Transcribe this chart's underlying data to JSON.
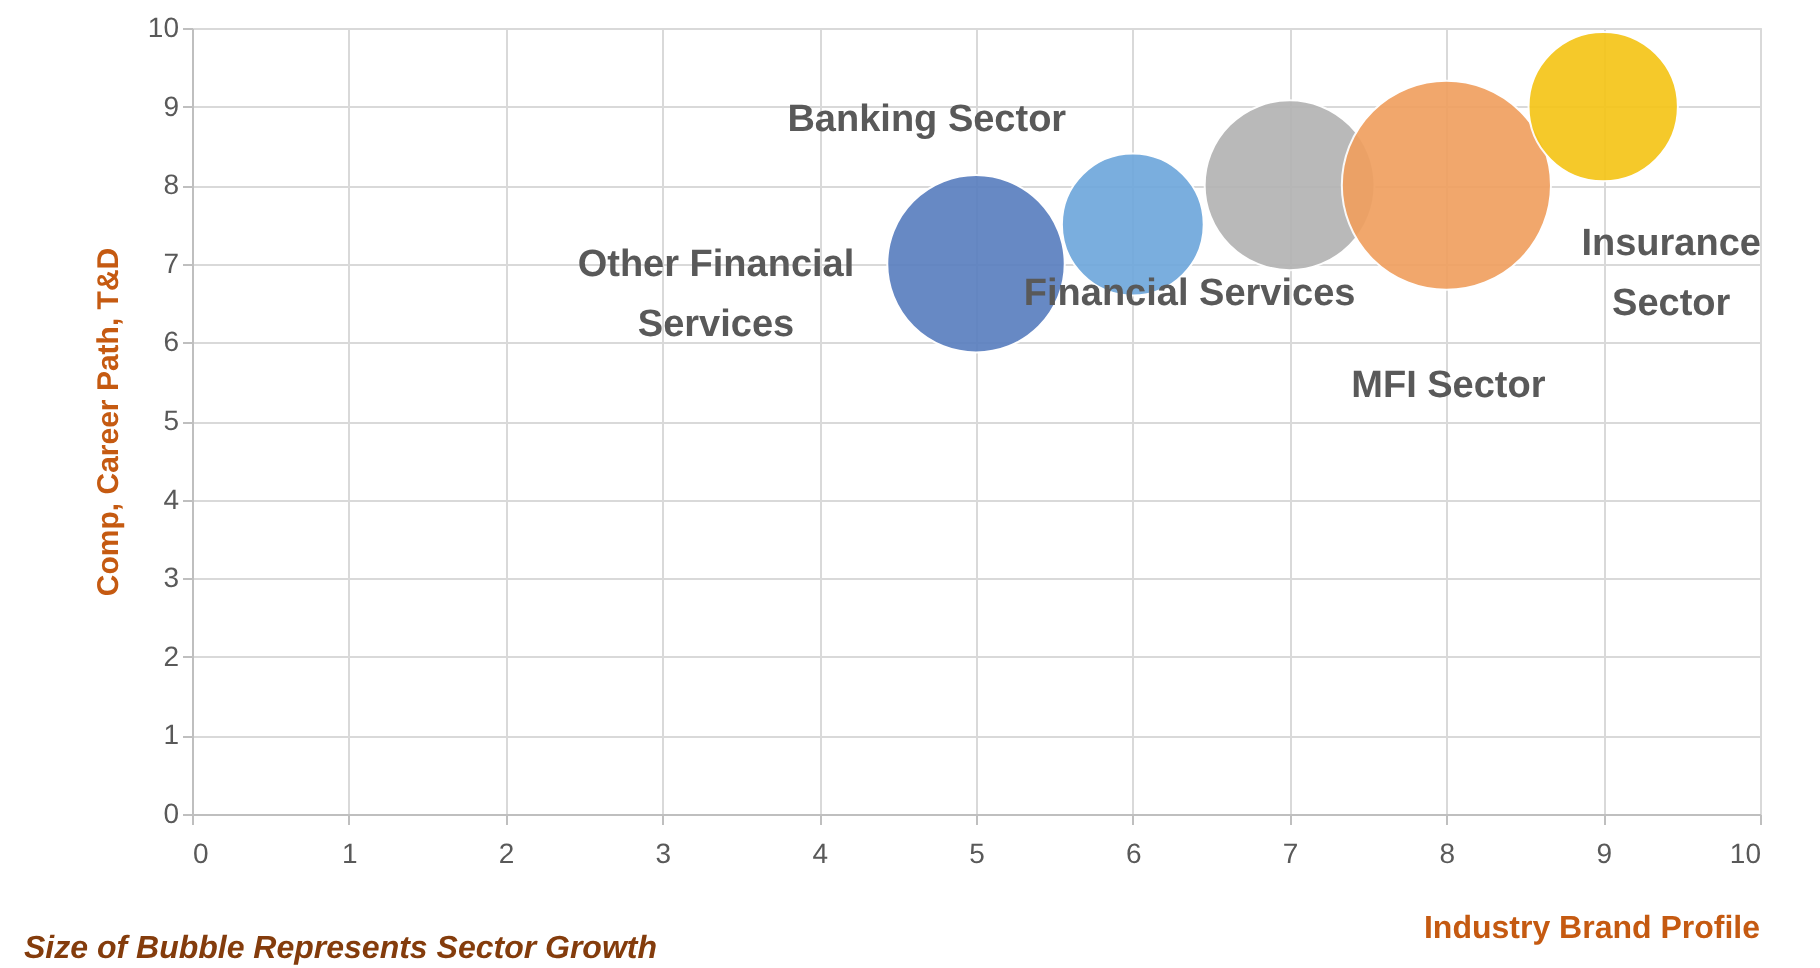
{
  "chart_data": {
    "type": "bubble",
    "xlabel": "Industry Brand Profile",
    "ylabel": "Comp, Career Path, T&D",
    "annotations": [
      "Size of Bubble Represents Sector Growth"
    ],
    "series": [
      {
        "name": "Other Financial Services",
        "color": "#5b7fc0",
        "x": [
          5
        ],
        "values": [
          7
        ],
        "sizes": [
          0.72
        ]
      },
      {
        "name": "Banking Sector",
        "color": "#6fa8dc",
        "x": [
          6
        ],
        "values": [
          7.5
        ],
        "sizes": [
          0.46
        ]
      },
      {
        "name": "Financial  Services",
        "color": "#b4b4b4",
        "x": [
          7
        ],
        "values": [
          8
        ],
        "sizes": [
          0.66
        ]
      },
      {
        "name": "MFI Sector",
        "color": "#f0a060",
        "x": [
          8
        ],
        "values": [
          8
        ],
        "sizes": [
          1
        ]
      },
      {
        "name": "Insurance Sector",
        "color": "#f5c518",
        "x": [
          9
        ],
        "values": [
          9
        ],
        "sizes": [
          0.51
        ]
      }
    ],
    "xlim": [
      0,
      10
    ],
    "xticks": [
      0,
      1,
      2,
      3,
      4,
      5,
      6,
      7,
      8,
      9,
      10
    ],
    "ylim": [
      0,
      10
    ],
    "yticks": [
      0,
      1,
      2,
      3,
      4,
      5,
      6,
      7,
      8,
      9,
      10
    ],
    "grid": true
  }
}
